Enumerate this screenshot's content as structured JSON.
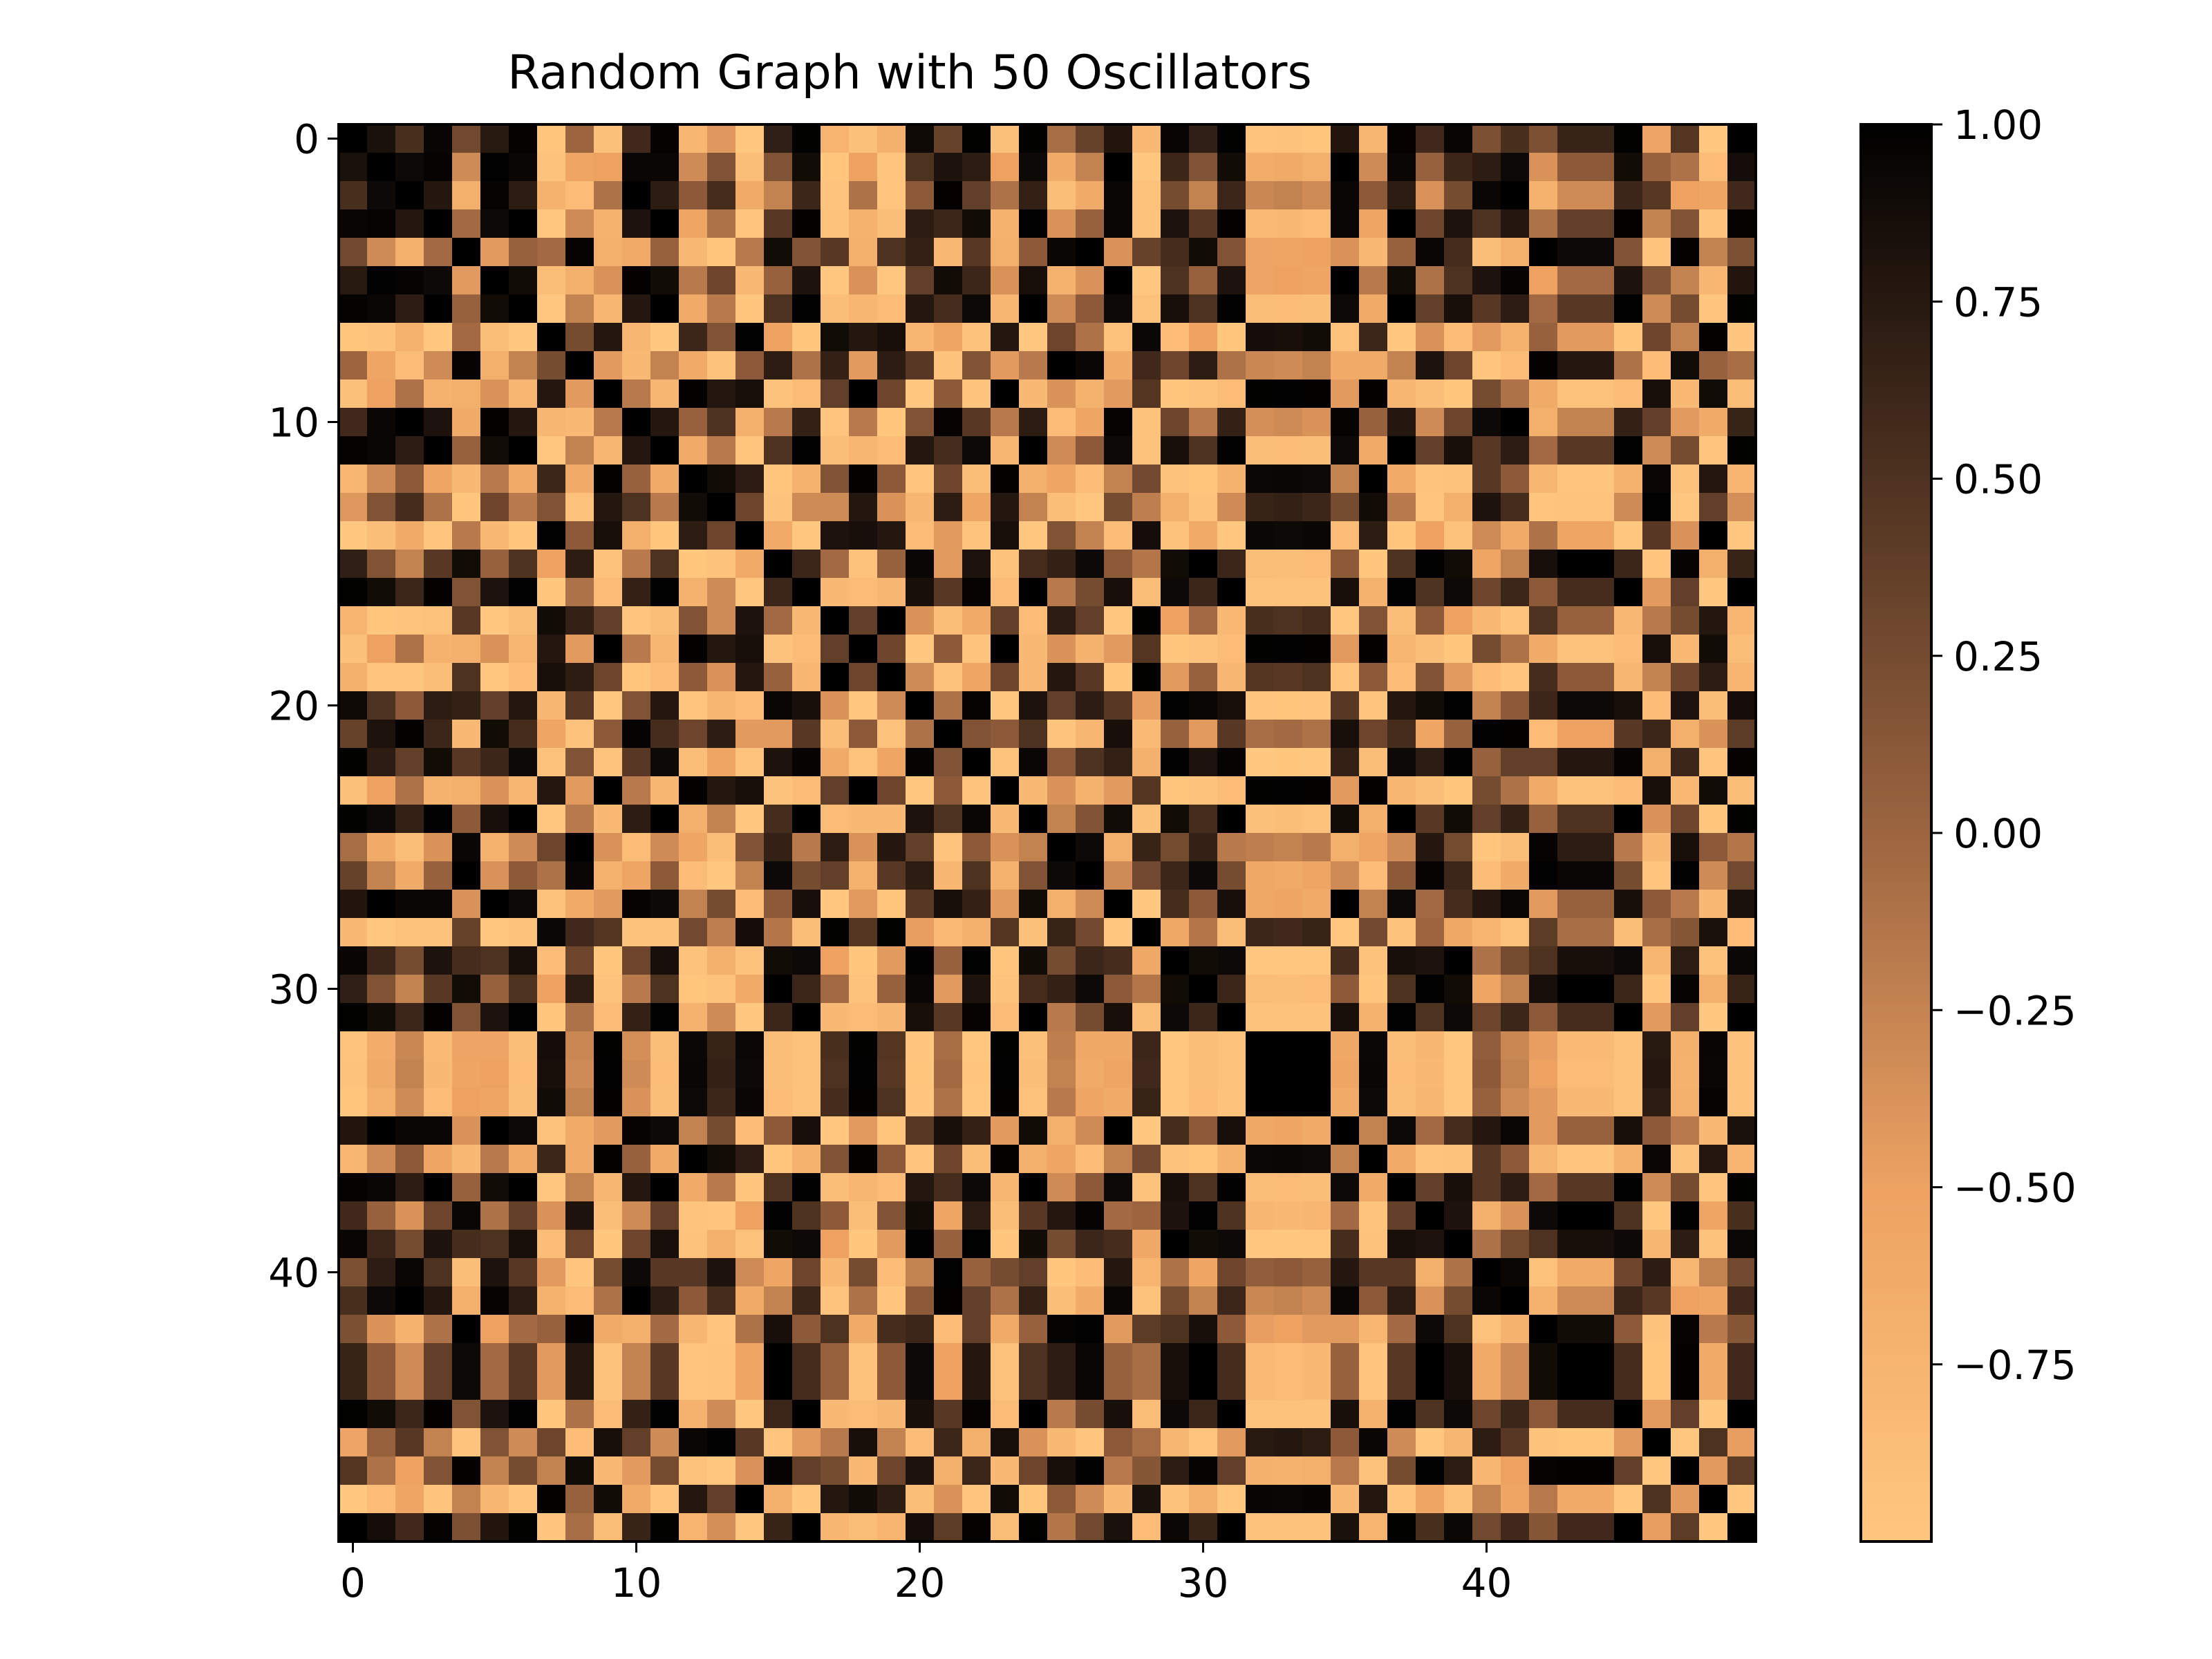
{
  "chart_data": {
    "type": "heatmap",
    "title": "Random Graph with 50 Oscillators",
    "n": 50,
    "xlabel": "",
    "ylabel": "",
    "x_ticks": [
      0,
      10,
      20,
      30,
      40
    ],
    "y_ticks": [
      0,
      10,
      20,
      30,
      40
    ],
    "x_tick_labels": [
      "0",
      "10",
      "20",
      "30",
      "40"
    ],
    "y_tick_labels": [
      "0",
      "10",
      "20",
      "30",
      "40"
    ],
    "colorbar": {
      "min": -1.0,
      "max": 1.0,
      "ticks": [
        1.0,
        0.75,
        0.5,
        0.25,
        0.0,
        -0.25,
        -0.5,
        -0.75
      ],
      "tick_labels": [
        "1.00",
        "0.75",
        "0.50",
        "0.25",
        "0.00",
        "−0.25",
        "−0.50",
        "−0.75"
      ]
    },
    "colormap": {
      "name": "copper_r",
      "stops": [
        {
          "v": -1.0,
          "color": "#ffc77f"
        },
        {
          "v": -0.5,
          "color": "#eda262"
        },
        {
          "v": 0.0,
          "color": "#9c6540"
        },
        {
          "v": 0.5,
          "color": "#4e3220"
        },
        {
          "v": 1.0,
          "color": "#000000"
        }
      ]
    },
    "phases_deg": [
      86,
      120,
      144,
      104,
      12,
      128,
      100,
      280,
      356,
      240,
      140,
      100,
      228,
      200,
      272,
      40,
      92,
      308,
      240,
      312,
      60,
      156,
      76,
      240,
      96,
      352,
      16,
      124,
      302,
      68,
      40,
      92,
      250,
      248,
      252,
      124,
      228,
      100,
      32,
      68,
      164,
      144,
      8,
      36,
      36,
      92,
      208,
      24,
      268,
      90
    ],
    "value_formula": "cos(phase_i - phase_j)",
    "values_note_hidden": true
  }
}
